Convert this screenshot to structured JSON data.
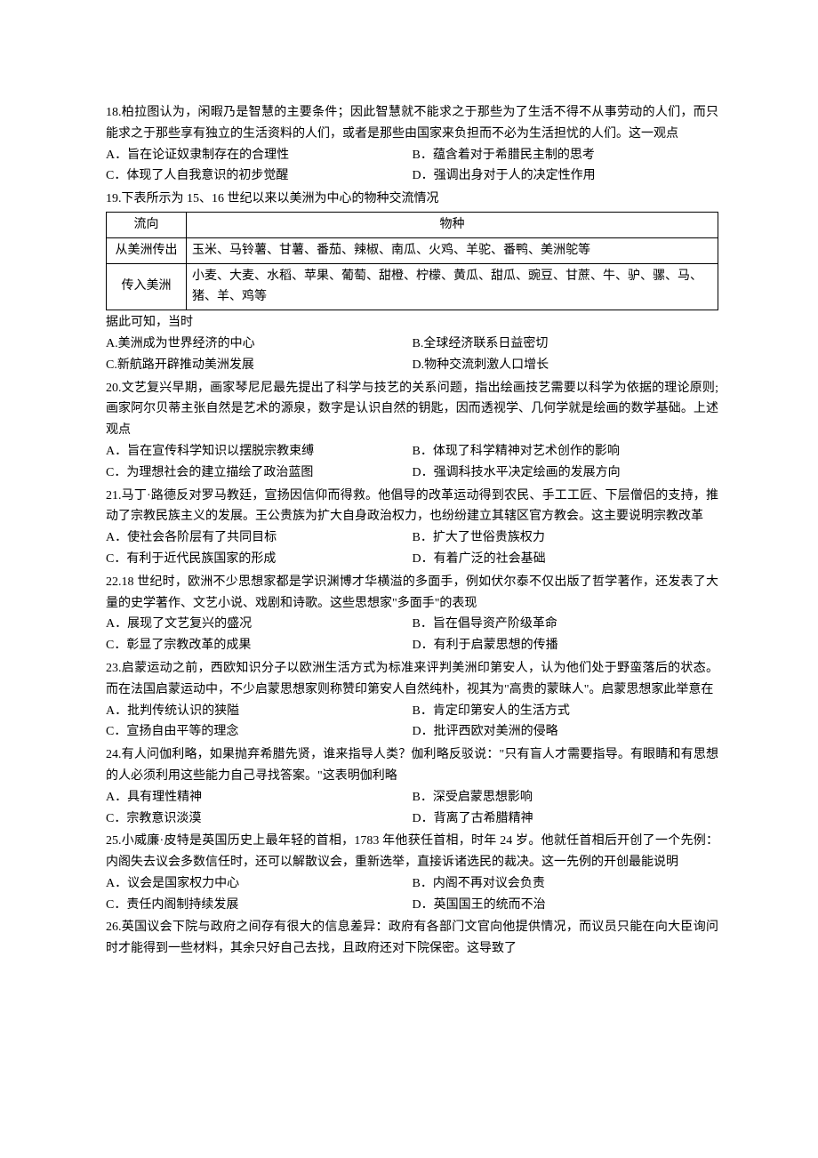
{
  "questions": [
    {
      "id": "18",
      "text": "18.柏拉图认为，闲暇乃是智慧的主要条件；因此智慧就不能求之于那些为了生活不得不从事劳动的人们，而只能求之于那些享有独立的生活资料的人们，或者是那些由国家来负担而不必为生活担忧的人们。这一观点",
      "options": {
        "A": "A．旨在论证奴隶制存在的合理性",
        "B": "B．蕴含着对于希腊民主制的思考",
        "C": "C．体现了人自我意识的初步觉醒",
        "D": "D．强调出身对于人的决定性作用"
      }
    },
    {
      "id": "19",
      "text": "19.下表所示为 15、16 世纪以来以美洲为中心的物种交流情况",
      "table": {
        "header": {
          "col1": "流向",
          "col2": "物种"
        },
        "rows": [
          {
            "col1": "从美洲传出",
            "col2": "玉米、马铃薯、甘薯、番茄、辣椒、南瓜、火鸡、羊驼、番鸭、美洲鸵等"
          },
          {
            "col1": "传入美洲",
            "col2": "小麦、大麦、水稻、苹果、葡萄、甜橙、柠檬、黄瓜、甜瓜、豌豆、甘蔗、牛、驴、骡、马、猪、羊、鸡等"
          }
        ]
      },
      "posttext": "据此可知，当时",
      "options": {
        "A": "A.美洲成为世界经济的中心",
        "B": "B.全球经济联系日益密切",
        "C": "C.新航路开辟推动美洲发展",
        "D": "D.物种交流刺激人口增长"
      }
    },
    {
      "id": "20",
      "text": "20.文艺复兴早期，画家琴尼尼最先提出了科学与技艺的关系问题，指出绘画技艺需要以科学为依据的理论原则;画家阿尔贝蒂主张自然是艺术的源泉，数字是认识自然的钥匙，因而透视学、几何学就是绘画的数学基础。上述观点",
      "options": {
        "A": "A．旨在宣传科学知识以摆脱宗教束缚",
        "B": "B．体现了科学精神对艺术创作的影响",
        "C": "C．为理想社会的建立描绘了政治蓝图",
        "D": "D．强调科技水平决定绘画的发展方向"
      }
    },
    {
      "id": "21",
      "text": "21.马丁·路德反对罗马教廷，宣扬因信仰而得救。他倡导的改革运动得到农民、手工工匠、下层僧侣的支持，推动了宗教民族主义的发展。王公贵族为扩大自身政治权力，也纷纷建立其辖区官方教会。这主要说明宗教改革",
      "options": {
        "A": "A．使社会各阶层有了共同目标",
        "B": "B．扩大了世俗贵族权力",
        "C": "C．有利于近代民族国家的形成",
        "D": "D．有着广泛的社会基础"
      }
    },
    {
      "id": "22",
      "text": "22.18 世纪时，欧洲不少思想家都是学识渊博才华横溢的多面手，例如伏尔泰不仅出版了哲学著作，还发表了大量的史学著作、文艺小说、戏剧和诗歌。这些思想家\"多面手\"的表现",
      "options": {
        "A": "A．展现了文艺复兴的盛况",
        "B": "B．旨在倡导资产阶级革命",
        "C": "C．彰显了宗教改革的成果",
        "D": "D．有利于启蒙思想的传播"
      }
    },
    {
      "id": "23",
      "text": "23.启蒙运动之前，西欧知识分子以欧洲生活方式为标准来评判美洲印第安人，认为他们处于野蛮落后的状态。而在法国启蒙运动中，不少启蒙思想家则称赞印第安人自然纯朴，视其为\"高贵的蒙昧人\"。启蒙思想家此举意在",
      "options": {
        "A": "A．批判传统认识的狭隘",
        "B": "B．肯定印第安人的生活方式",
        "C": "C．宣扬自由平等的理念",
        "D": "D．批评西欧对美洲的侵略"
      }
    },
    {
      "id": "24",
      "text": "24.有人问伽利略，如果抛弃希腊先贤，谁来指导人类？伽利略反驳说：\"只有盲人才需要指导。有眼睛和有思想的人必须利用这些能力自己寻找答案。\"这表明伽利略",
      "options": {
        "A": "A．具有理性精神",
        "B": "B．深受启蒙思想影响",
        "C": "C．宗教意识淡漠",
        "D": "D．背离了古希腊精神"
      }
    },
    {
      "id": "25",
      "text": "25.小威廉·皮特是英国历史上最年轻的首相，1783 年他获任首相，时年 24 岁。他就任首相后开创了一个先例：内阁失去议会多数信任时，还可以解散议会，重新选举，直接诉诸选民的裁决。这一先例的开创最能说明",
      "options": {
        "A": "A．议会是国家权力中心",
        "B": "B．内阁不再对议会负责",
        "C": "C．责任内阁制持续发展",
        "D": "D．英国国王的统而不治"
      }
    },
    {
      "id": "26",
      "text": "26.英国议会下院与政府之间存有很大的信息差异：政府有各部门文官向他提供情况，而议员只能在向大臣询问时才能得到一些材料，其余只好自己去找，且政府还对下院保密。这导致了"
    }
  ]
}
